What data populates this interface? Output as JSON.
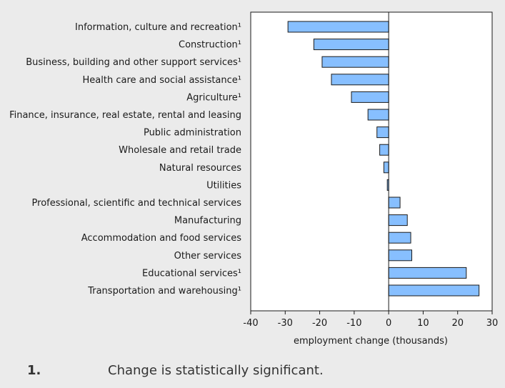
{
  "chart_data": {
    "type": "bar",
    "orientation": "horizontal",
    "categories": [
      "Information, culture and recreation¹",
      "Construction¹",
      "Business, building and other support services¹",
      "Health care and social assistance¹",
      "Agriculture¹",
      "Finance, insurance, real estate, rental and leasing",
      "Public administration",
      "Wholesale and retail trade",
      "Natural resources",
      "Utilities",
      "Professional, scientific and technical services",
      "Manufacturing",
      "Accommodation and food services",
      "Other services",
      "Educational services¹",
      "Transportation and warehousing¹"
    ],
    "values": [
      -29.2,
      -21.7,
      -19.3,
      -16.6,
      -10.8,
      -6.0,
      -3.4,
      -2.6,
      -1.4,
      -0.4,
      3.3,
      5.4,
      6.4,
      6.7,
      22.5,
      26.2
    ],
    "xlabel": "employment change (thousands)",
    "ylabel": "",
    "xlim": [
      -40,
      30
    ],
    "xticks": [
      "-40",
      "-30",
      "-20",
      "-10",
      "0",
      "10",
      "20",
      "30"
    ],
    "grid": false,
    "bar_color": "#87bfff",
    "bar_edge_color": "#1a1a1a"
  },
  "footnote": {
    "number": "1.",
    "text": "Change is statistically significant."
  }
}
